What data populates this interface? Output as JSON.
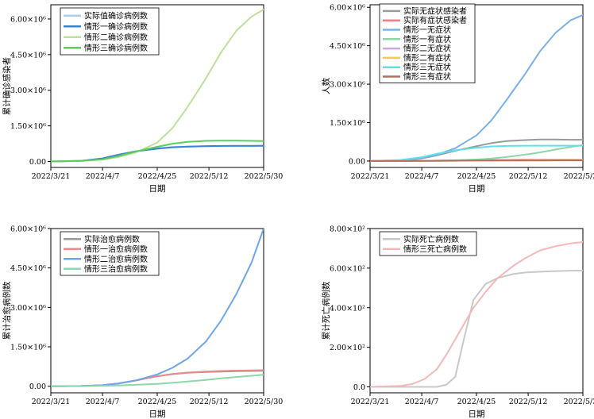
{
  "charts": [
    {
      "title": "",
      "xlabel": "日期",
      "ylabel": "累计确诊感染者",
      "ylim": [
        -250000,
        6600000
      ],
      "y_ticks": [
        0,
        1500000,
        3000000,
        4500000,
        6000000
      ],
      "y_tick_labels": [
        "0.00",
        "1.50×10⁶",
        "3.00×10⁶",
        "4.50×10⁶",
        "6.00×10⁶"
      ],
      "series": [
        {
          "name": "实际值确诊病例数",
          "color": "#a8cdef",
          "days": [
            0,
            10,
            17,
            22,
            28,
            35,
            40,
            45,
            51,
            56,
            61,
            66,
            70
          ],
          "values": [
            0,
            30000,
            120000,
            260000,
            430000,
            560000,
            610000,
            630000,
            640000,
            645000,
            648000,
            650000,
            652000
          ]
        },
        {
          "name": "情形一确诊病例数",
          "color": "#3a82d6",
          "days": [
            0,
            10,
            17,
            22,
            28,
            35,
            40,
            45,
            51,
            56,
            61,
            66,
            70
          ],
          "values": [
            0,
            30000,
            130000,
            280000,
            430000,
            540000,
            600000,
            630000,
            650000,
            655000,
            660000,
            662000,
            665000
          ]
        },
        {
          "name": "情形二确诊病例数",
          "color": "#bfe09a",
          "days": [
            0,
            10,
            17,
            22,
            28,
            35,
            40,
            45,
            51,
            56,
            61,
            66,
            70
          ],
          "values": [
            0,
            25000,
            80000,
            180000,
            380000,
            800000,
            1400000,
            2300000,
            3500000,
            4600000,
            5500000,
            6100000,
            6400000
          ]
        },
        {
          "name": "情形三确诊病例数",
          "color": "#5ecb5e",
          "days": [
            0,
            10,
            17,
            22,
            28,
            35,
            40,
            45,
            51,
            56,
            61,
            66,
            70
          ],
          "values": [
            0,
            25000,
            90000,
            220000,
            420000,
            620000,
            750000,
            830000,
            870000,
            880000,
            880000,
            870000,
            860000
          ]
        }
      ]
    },
    {
      "title": "",
      "xlabel": "日期",
      "ylabel": "人数",
      "ylim": [
        -250000,
        6100000
      ],
      "y_ticks": [
        0,
        1500000,
        3000000,
        4500000,
        6000000
      ],
      "y_tick_labels": [
        "0.00",
        "1.50×10⁶",
        "3.00×10⁶",
        "4.50×10⁶",
        "6.00×10⁶"
      ],
      "series": [
        {
          "name": "实际无症状感染者",
          "color": "#9a9a9a",
          "days": [
            0,
            10,
            17,
            22,
            28,
            35,
            40,
            45,
            51,
            56,
            61,
            66,
            70
          ],
          "values": [
            0,
            20000,
            100000,
            220000,
            400000,
            580000,
            700000,
            780000,
            820000,
            840000,
            840000,
            830000,
            830000
          ]
        },
        {
          "name": "实际有症状感染者",
          "color": "#f08080",
          "days": [
            0,
            10,
            17,
            22,
            28,
            35,
            40,
            45,
            51,
            56,
            61,
            66,
            70
          ],
          "values": [
            0,
            2000,
            8000,
            15000,
            25000,
            35000,
            40000,
            45000,
            50000,
            52000,
            53000,
            54000,
            55000
          ]
        },
        {
          "name": "情形一无症状",
          "color": "#7ab0e8",
          "days": [
            0,
            10,
            17,
            22,
            28,
            35,
            40,
            45,
            51,
            56,
            61,
            66,
            70
          ],
          "values": [
            0,
            30000,
            120000,
            250000,
            500000,
            1000000,
            1600000,
            2400000,
            3400000,
            4300000,
            5000000,
            5500000,
            5700000
          ]
        },
        {
          "name": "情形一有症状",
          "color": "#8fd6a8",
          "days": [
            0,
            10,
            17,
            22,
            28,
            35,
            40,
            45,
            51,
            56,
            61,
            66,
            70
          ],
          "values": [
            0,
            2000,
            8000,
            15000,
            30000,
            60000,
            100000,
            160000,
            250000,
            340000,
            450000,
            550000,
            620000
          ]
        },
        {
          "name": "情形二无症状",
          "color": "#c8a8e0",
          "days": [
            0,
            10,
            17,
            22,
            28,
            35,
            40,
            45,
            51,
            56,
            61,
            66,
            70
          ],
          "values": [
            0,
            1000,
            3000,
            6000,
            10000,
            15000,
            20000,
            25000,
            30000,
            35000,
            40000,
            42000,
            45000
          ]
        },
        {
          "name": "情形二有症状",
          "color": "#f5c85a",
          "days": [
            0,
            10,
            17,
            22,
            28,
            35,
            40,
            45,
            51,
            56,
            61,
            66,
            70
          ],
          "values": [
            0,
            1000,
            3000,
            6000,
            10000,
            15000,
            20000,
            25000,
            30000,
            35000,
            38000,
            40000,
            42000
          ]
        },
        {
          "name": "情形三无症状",
          "color": "#5de0ea",
          "days": [
            0,
            10,
            17,
            22,
            28,
            35,
            40,
            45,
            51,
            56,
            61,
            66,
            70
          ],
          "values": [
            0,
            40000,
            150000,
            280000,
            420000,
            520000,
            570000,
            590000,
            600000,
            600000,
            600000,
            600000,
            600000
          ]
        },
        {
          "name": "情形三有症状",
          "color": "#b07060",
          "days": [
            0,
            10,
            17,
            22,
            28,
            35,
            40,
            45,
            51,
            56,
            61,
            66,
            70
          ],
          "values": [
            0,
            2000,
            6000,
            10000,
            15000,
            18000,
            20000,
            22000,
            23000,
            24000,
            25000,
            25000,
            25000
          ]
        }
      ]
    },
    {
      "title": "",
      "xlabel": "日期",
      "ylabel": "累计治愈病例数",
      "ylim": [
        -250000,
        6000000
      ],
      "y_ticks": [
        0,
        1500000,
        3000000,
        4500000,
        6000000
      ],
      "y_tick_labels": [
        "0.00",
        "1.50×10⁶",
        "3.00×10⁶",
        "4.50×10⁶",
        "6.00×10⁶"
      ],
      "series": [
        {
          "name": "实际治愈病例数",
          "color": "#9a9a9a",
          "days": [
            0,
            10,
            17,
            22,
            28,
            35,
            40,
            45,
            51,
            56,
            61,
            66,
            70
          ],
          "values": [
            0,
            10000,
            40000,
            100000,
            220000,
            380000,
            460000,
            510000,
            545000,
            560000,
            570000,
            580000,
            585000
          ]
        },
        {
          "name": "情形一治愈病例数",
          "color": "#e98a8a",
          "days": [
            0,
            10,
            17,
            22,
            28,
            35,
            40,
            45,
            51,
            56,
            61,
            66,
            70
          ],
          "values": [
            0,
            10000,
            40000,
            100000,
            220000,
            380000,
            470000,
            520000,
            560000,
            580000,
            595000,
            605000,
            610000
          ]
        },
        {
          "name": "情形二治愈病例数",
          "color": "#6ea6ea",
          "days": [
            0,
            10,
            17,
            22,
            28,
            35,
            40,
            45,
            51,
            56,
            61,
            66,
            70
          ],
          "values": [
            0,
            10000,
            40000,
            100000,
            220000,
            450000,
            700000,
            1050000,
            1700000,
            2500000,
            3500000,
            4700000,
            6000000
          ]
        },
        {
          "name": "情形三治愈病例数",
          "color": "#8fd6a8",
          "days": [
            0,
            10,
            17,
            22,
            28,
            35,
            40,
            45,
            51,
            56,
            61,
            66,
            70
          ],
          "values": [
            0,
            5000,
            15000,
            30000,
            55000,
            90000,
            130000,
            180000,
            240000,
            300000,
            350000,
            400000,
            440000
          ]
        }
      ]
    },
    {
      "title": "",
      "xlabel": "日期",
      "ylabel": "累计死亡病例数",
      "ylim": [
        -30,
        800
      ],
      "y_ticks": [
        0,
        200,
        400,
        600,
        800
      ],
      "y_tick_labels": [
        "0.0",
        "2.00×10²",
        "4.00×10²",
        "6.00×10²",
        "8.00×10²"
      ],
      "series": [
        {
          "name": "实际死亡病例数",
          "color": "#c8c8c8",
          "days": [
            0,
            10,
            17,
            22,
            25,
            28,
            31,
            34,
            38,
            42,
            47,
            51,
            56,
            61,
            66,
            70
          ],
          "values": [
            0,
            0,
            0,
            0,
            10,
            50,
            250,
            440,
            520,
            550,
            570,
            578,
            582,
            585,
            587,
            588
          ]
        },
        {
          "name": "情形三死亡病例数",
          "color": "#f5b8b8",
          "days": [
            0,
            10,
            14,
            18,
            22,
            25,
            28,
            31,
            34,
            38,
            42,
            47,
            51,
            56,
            61,
            66,
            70
          ],
          "values": [
            0,
            5,
            15,
            40,
            90,
            160,
            240,
            320,
            400,
            480,
            550,
            610,
            650,
            690,
            710,
            725,
            732
          ]
        }
      ]
    }
  ],
  "x_axis": {
    "min": 0,
    "max": 70,
    "ticks": [
      0,
      17,
      35,
      52,
      70
    ],
    "tick_labels": [
      "2022/3/21",
      "2022/4/7",
      "2022/4/25",
      "2022/5/12",
      "2022/5/30"
    ]
  }
}
